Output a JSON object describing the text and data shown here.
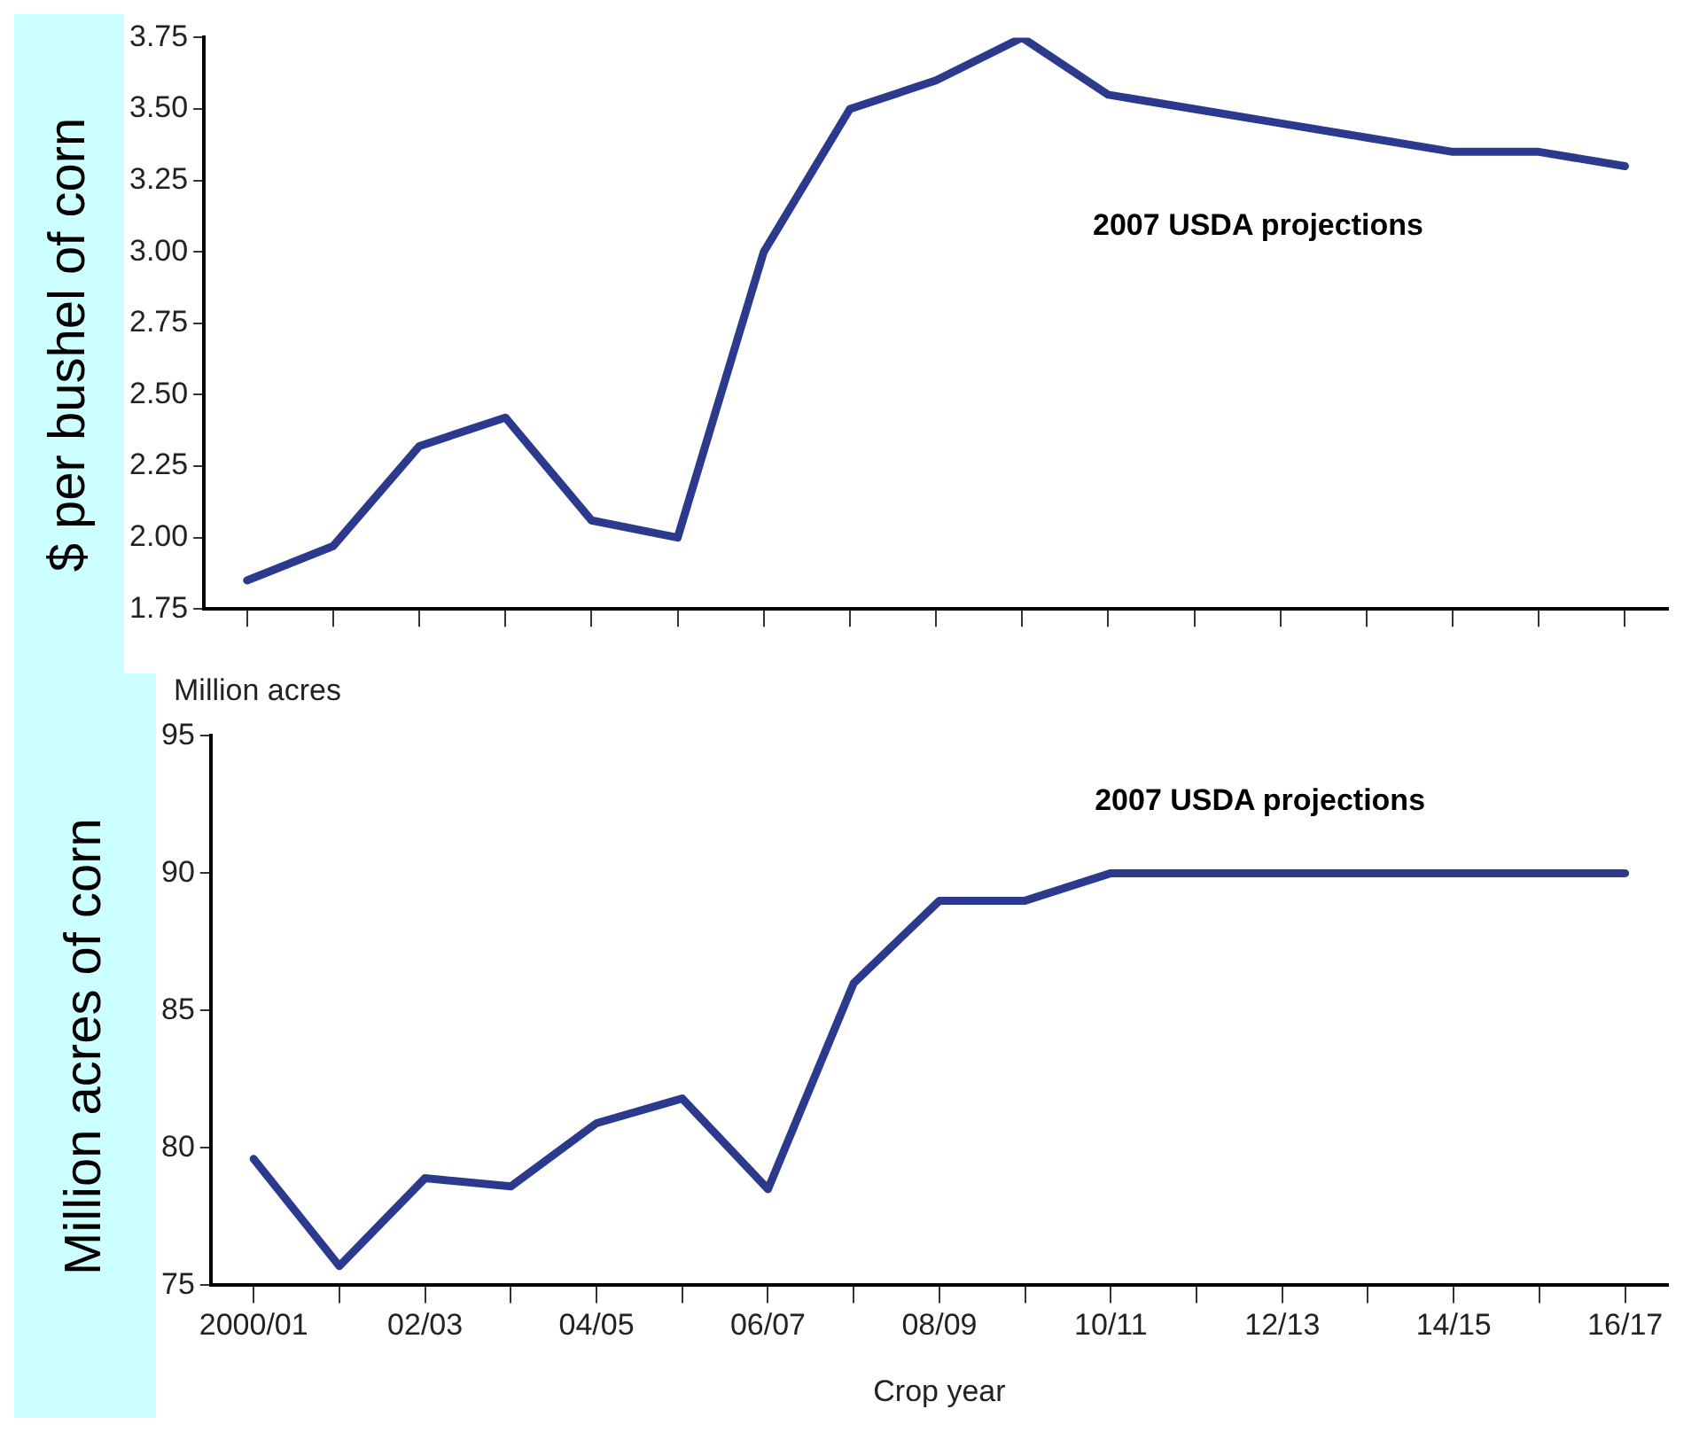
{
  "chart_data": [
    {
      "type": "line",
      "ylabel": "$ per bushel of corn",
      "categories": [
        null,
        null,
        null,
        null,
        null,
        null,
        null,
        null,
        null,
        null,
        null,
        null,
        null,
        null,
        null,
        null,
        null
      ],
      "series": [
        {
          "color": "#2b3a8c",
          "values": [
            1.85,
            1.97,
            2.32,
            2.42,
            2.06,
            2.0,
            3.0,
            3.5,
            3.6,
            3.75,
            3.55,
            3.5,
            3.45,
            3.4,
            3.35,
            3.35,
            3.3
          ]
        }
      ],
      "ylim": [
        1.75,
        3.75
      ],
      "yticks": [
        {
          "value": 1.75,
          "label": "1.75"
        },
        {
          "value": 2,
          "label": "2.00"
        },
        {
          "value": 2.25,
          "label": "2.25"
        },
        {
          "value": 2.5,
          "label": "2.50"
        },
        {
          "value": 2.75,
          "label": "2.75"
        },
        {
          "value": 3,
          "label": "3.00"
        },
        {
          "value": 3.25,
          "label": "3.25"
        },
        {
          "value": 3.5,
          "label": "3.50"
        },
        {
          "value": 3.75,
          "label": "3.75"
        }
      ],
      "tick_labels": "y",
      "grid": false,
      "legend": false,
      "marker": "none",
      "line_style": "solid",
      "annotations": [
        "2007 USDA projections"
      ]
    },
    {
      "type": "line",
      "ylabel": "Million acres of corn",
      "xlabel": "Crop year",
      "categories": [
        "2000/01",
        null,
        "02/03",
        null,
        "04/05",
        null,
        "06/07",
        null,
        "08/09",
        null,
        "10/11",
        null,
        "12/13",
        null,
        "14/15",
        null,
        "16/17"
      ],
      "series": [
        {
          "color": "#2b3a8c",
          "values": [
            79.6,
            75.7,
            78.9,
            78.6,
            80.9,
            81.8,
            78.5,
            86,
            89,
            89,
            90,
            90,
            90,
            90,
            90,
            90,
            90
          ]
        }
      ],
      "ylim": [
        75,
        95
      ],
      "yticks": [
        75,
        80,
        85,
        90,
        95
      ],
      "grid": false,
      "legend": false,
      "marker": "none",
      "line_style": "solid",
      "annotations": [
        "Million acres",
        "2007 USDA projections"
      ]
    }
  ]
}
